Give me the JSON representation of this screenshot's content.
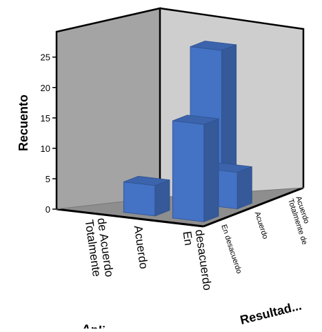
{
  "chart_data": {
    "type": "bar",
    "subtype": "3d-clustered",
    "ylabel": "Recuento",
    "xlabel": "Aplicación",
    "zlabel": "Resultad...",
    "ylim": [
      0,
      28
    ],
    "yticks": [
      0,
      5,
      10,
      15,
      20,
      25
    ],
    "x_categories": [
      "Totalmente de Acuerdo",
      "Acuerdo",
      "En desacuerdo"
    ],
    "z_categories": [
      "En desacuerdo",
      "Acuerdo",
      "Totalmente de Acuerdo"
    ],
    "bars": [
      {
        "x": "Acuerdo",
        "z": "Totalmente de Acuerdo",
        "value": 23
      },
      {
        "x": "Acuerdo",
        "z": "En desacuerdo",
        "value": 5
      },
      {
        "x": "En desacuerdo",
        "z": "En desacuerdo",
        "value": 16
      },
      {
        "x": "En desacuerdo",
        "z": "Acuerdo",
        "value": 6
      }
    ],
    "grid": false,
    "colors": {
      "bar": "#4472c4",
      "back_wall": "#a4a4a4",
      "side_wall": "#cecece",
      "floor": "#8e8e8e"
    }
  }
}
